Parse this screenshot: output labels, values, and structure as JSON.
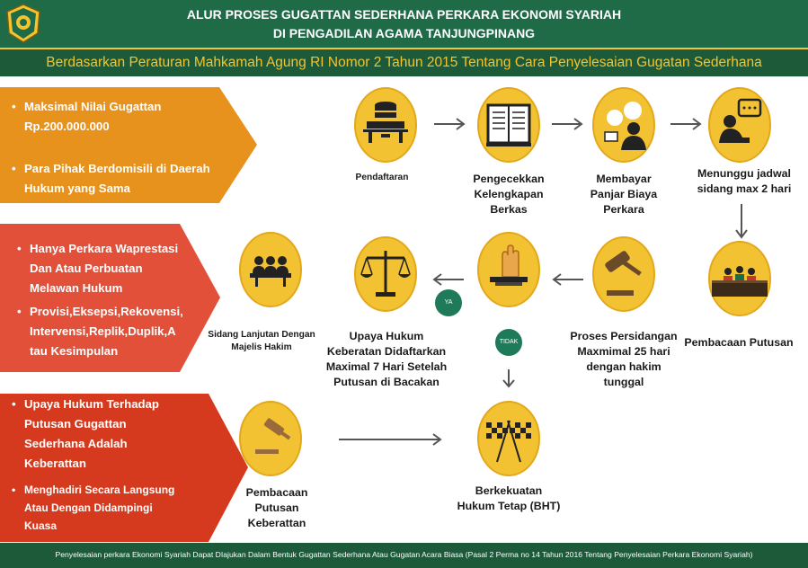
{
  "header": {
    "title_line1": "ALUR PROSES GUGATTAN SEDERHANA PERKARA EKONOMI SYARIAH",
    "title_line2": "DI PENGADILAN AGAMA TANJUNGPINANG",
    "subtitle": "Berdasarkan Peraturan Mahkamah Agung RI Nomor 2 Tahun 2015 Tentang Cara Penyelesaian Gugatan Sederhana"
  },
  "banners": {
    "orange": {
      "color": "#e8921e",
      "items": [
        "Maksimal Nilai Gugattan",
        "Rp.200.000.000",
        "Para Pihak Berdomisili di Daerah",
        "Hukum yang Sama"
      ]
    },
    "red": {
      "color": "#e2503a",
      "items": [
        "Hanya Perkara Waprestasi",
        "Dan Atau Perbuatan",
        "Melawan Hukum",
        "Provisi,Eksepsi,Rekovensi,",
        "Intervensi,Replik,Duplik,A",
        "tau Kesimpulan"
      ]
    },
    "darkred": {
      "color": "#d63a1e",
      "items": [
        "Upaya Hukum Terhadap",
        "Putusan Gugattan",
        "Sederhana Adalah",
        "Keberattan",
        "Menghadiri Secara Langsung",
        "Atau Dengan Didampingi",
        "Kuasa"
      ]
    }
  },
  "steps": {
    "pendaftaran": "Pendaftaran",
    "pengecekkan": [
      "Pengecekkan",
      "Kelengkapan",
      "Berkas"
    ],
    "membayar": [
      "Membayar",
      "Panjar Biaya",
      "Perkara"
    ],
    "menunggu": [
      "Menunggu jadwal",
      "sidang max 2 hari"
    ],
    "pembacaan_putusan": "Pembacaan Putusan",
    "proses": [
      "Proses Persidangan",
      "Maxmimal 25 hari",
      "dengan hakim",
      "tunggal"
    ],
    "upaya": [
      "Upaya Hukum",
      "Keberatan Didaftarkan",
      "Maximal 7 Hari Setelah",
      "Putusan di Bacakan"
    ],
    "sidang": [
      "Sidang Lanjutan Dengan",
      "Majelis Hakim"
    ],
    "pembacaan_keberattan": [
      "Pembacaan",
      "Putusan",
      "Keberattan"
    ],
    "bht": [
      "Berkekuatan",
      "Hukum Tetap (BHT)"
    ]
  },
  "badges": {
    "ya": "YA",
    "tidak": "TIDAK"
  },
  "footer": "Penyelesaian perkara Ekonomi Syariah Dapat DIajukan Dalam Bentuk Gugattan Sederhana Atau Gugatan Acara Biasa (Pasal 2 Perma no 14 Tahun 2016 Tentang Penyelesaian Perkara Ekonomi Syariah)",
  "colors": {
    "green": "#1f6b48",
    "gold": "#f4c430",
    "circle": "#f2c233",
    "circle_border": "#e3a81a"
  },
  "icons": [
    "server-icon",
    "book-icon",
    "payment-icon",
    "chat-icon",
    "judges-icon",
    "gavel-icon",
    "hand-vote-icon",
    "scales-icon",
    "meeting-icon",
    "checkered-flags-icon"
  ]
}
